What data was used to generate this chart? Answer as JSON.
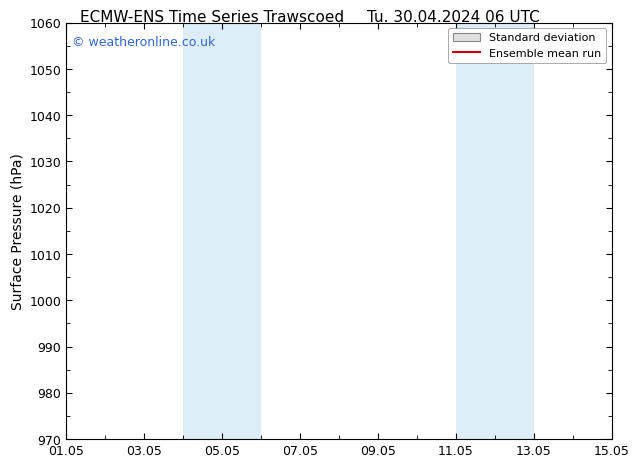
{
  "title_left": "ECMW-ENS Time Series Trawscoed",
  "title_right": "Tu. 30.04.2024 06 UTC",
  "ylabel": "Surface Pressure (hPa)",
  "ylim": [
    970,
    1060
  ],
  "yticks": [
    970,
    980,
    990,
    1000,
    1010,
    1020,
    1030,
    1040,
    1050,
    1060
  ],
  "x_start_days": 0,
  "x_end_days": 14,
  "xtick_labels": [
    "01.05",
    "03.05",
    "05.05",
    "07.05",
    "09.05",
    "11.05",
    "13.05",
    "15.05"
  ],
  "xtick_positions_days": [
    0,
    2,
    4,
    6,
    8,
    10,
    12,
    14
  ],
  "shaded_bands": [
    {
      "x_start_days": 3.0,
      "x_end_days": 5.0
    },
    {
      "x_start_days": 10.0,
      "x_end_days": 12.0
    }
  ],
  "shade_color": "#ddeef8",
  "watermark_text": "© weatheronline.co.uk",
  "watermark_color": "#3366cc",
  "legend_std_label": "Standard deviation",
  "legend_ens_label": "Ensemble mean run",
  "legend_std_facecolor": "#e0e0e0",
  "legend_std_edgecolor": "#888888",
  "legend_ens_color": "#cc0000",
  "bg_color": "#ffffff",
  "title_fontsize": 11,
  "ylabel_fontsize": 10,
  "tick_fontsize": 9,
  "watermark_fontsize": 9,
  "legend_fontsize": 8
}
